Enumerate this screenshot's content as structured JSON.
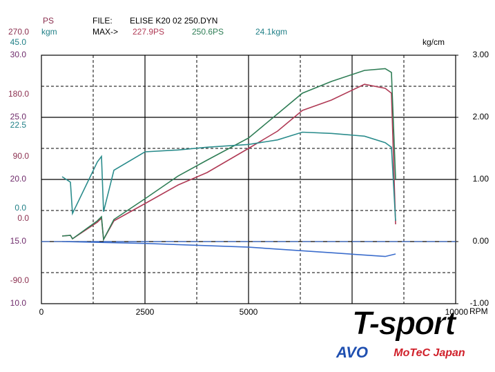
{
  "chart_data": {
    "type": "line",
    "header": {
      "file_label": "FILE:",
      "file_name": "ELISE K20 02 250.DYN",
      "max_label": "MAX->",
      "max_values": [
        "227.9PS",
        "250.6PS",
        "24.1kgm"
      ]
    },
    "xlim": [
      0,
      10000
    ],
    "xticks": [
      0,
      2500,
      5000,
      10000
    ],
    "xlabel": "RPM",
    "axes": [
      {
        "name": "PS",
        "color": "#8b2f4f",
        "ylim": [
          -90,
          270
        ],
        "yticks": [
          {
            "value": 270,
            "label": "270.0"
          },
          {
            "value": 180,
            "label": "180.0"
          },
          {
            "value": 90,
            "label": "90.0"
          },
          {
            "value": 0,
            "label": "0.0"
          },
          {
            "value": -90,
            "label": "-90.0"
          }
        ]
      },
      {
        "name": "kgm",
        "color": "#1f7f86",
        "ylim": [
          -22.5,
          45
        ],
        "yticks": [
          {
            "value": 45,
            "label": "45.0"
          },
          {
            "value": 22.5,
            "label": "22.5"
          },
          {
            "value": 0,
            "label": "0.0"
          }
        ]
      },
      {
        "color": "#6e2a6a",
        "ylim": [
          10,
          30
        ],
        "yticks": [
          {
            "value": 30,
            "label": "30.0"
          },
          {
            "value": 25,
            "label": "25.0"
          },
          {
            "value": 20,
            "label": "20.0"
          },
          {
            "value": 15,
            "label": "15.0"
          },
          {
            "value": 10,
            "label": "10.0"
          }
        ]
      },
      {
        "name": "kg/cm",
        "color": "#000000",
        "ylim": [
          -1,
          3
        ],
        "yticks": [
          {
            "value": 3,
            "label": "3.00"
          },
          {
            "value": 2,
            "label": "2.00"
          },
          {
            "value": 1,
            "label": "1.00"
          },
          {
            "value": 0,
            "label": "0.00"
          },
          {
            "value": -1,
            "label": "-1.00"
          }
        ]
      }
    ],
    "series": [
      {
        "color": "#b03a55",
        "axis": 0,
        "x": [
          500,
          700,
          750,
          1350,
          1450,
          1500,
          1750,
          2500,
          3300,
          4000,
          5000,
          5700,
          6300,
          7000,
          7800,
          8300,
          8450,
          8550
        ],
        "values": [
          8,
          9,
          4,
          28,
          34,
          3,
          30,
          55,
          82,
          100,
          135,
          160,
          190,
          205,
          227.9,
          222,
          215,
          25
        ]
      },
      {
        "color": "#2e7d55",
        "axis": 0,
        "x": [
          500,
          700,
          750,
          1350,
          1450,
          1500,
          1750,
          2500,
          3300,
          4000,
          5000,
          5700,
          6300,
          7000,
          7800,
          8300,
          8450,
          8550
        ],
        "values": [
          8,
          9,
          4,
          30,
          36,
          3,
          32,
          62,
          95,
          118,
          150,
          185,
          215,
          232,
          248,
          250.6,
          245,
          90
        ]
      },
      {
        "color": "#2a8c8c",
        "axis": 1,
        "x": [
          500,
          700,
          750,
          1350,
          1450,
          1500,
          1750,
          2500,
          3300,
          4000,
          5000,
          5700,
          6300,
          7000,
          7800,
          8300,
          8450,
          8550
        ],
        "values": [
          12,
          10.5,
          2,
          16,
          17.5,
          2.5,
          13.75,
          18.75,
          19.25,
          20,
          20.75,
          22,
          24.1,
          23.75,
          23,
          21.25,
          20,
          0
        ]
      },
      {
        "color": "#3a6ccc",
        "axis": 3,
        "x": [
          500,
          2500,
          5000,
          7000,
          8300,
          8550
        ],
        "values": [
          0,
          -0.03,
          -0.09,
          -0.18,
          -0.24,
          -0.2
        ]
      }
    ],
    "zero_line": {
      "axis": 3,
      "tick": 3,
      "color": "#3a6ccc"
    },
    "logo": {
      "brand": "T-sport",
      "partner1": "AVO",
      "partner2": "MoTeC Japan"
    }
  }
}
